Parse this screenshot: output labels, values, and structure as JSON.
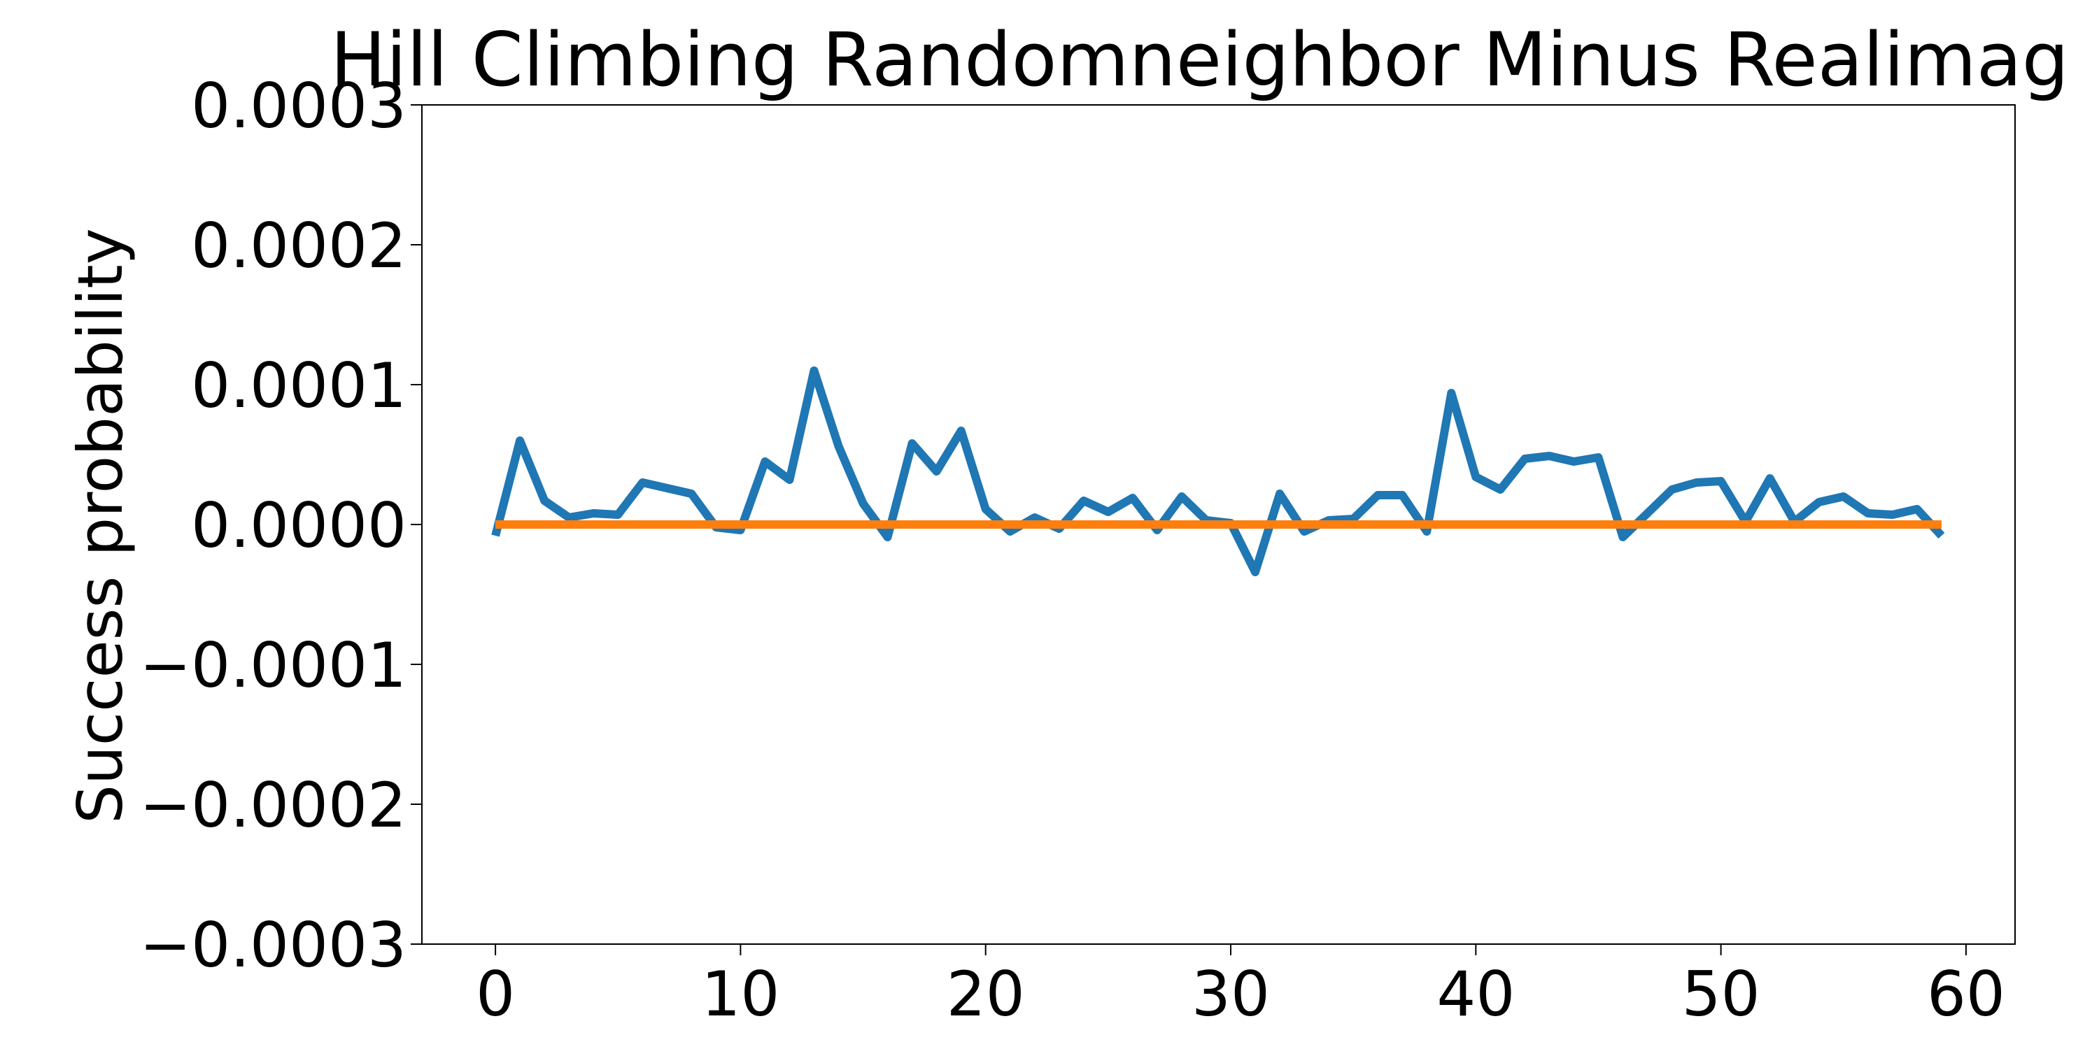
{
  "chart_data": {
    "type": "line",
    "title": "Hill Climbing Randomneighbor Minus Realimag",
    "xlabel": "",
    "ylabel": "Success probability",
    "xlim": [
      -3,
      62
    ],
    "ylim": [
      -0.0003,
      0.0003
    ],
    "xticks": [
      0,
      10,
      20,
      30,
      40,
      50,
      60
    ],
    "xtick_labels": [
      "0",
      "10",
      "20",
      "30",
      "40",
      "50",
      "60"
    ],
    "yticks": [
      0.0003,
      0.0002,
      0.0001,
      0.0,
      -0.0001,
      -0.0002,
      -0.0003
    ],
    "ytick_labels": [
      "0.0003",
      "0.0002",
      "0.0001",
      "0.0000",
      "−0.0001",
      "−0.0002",
      "−0.0003"
    ],
    "grid": false,
    "series": [
      {
        "color": "#1f77b4",
        "x": [
          0,
          1,
          2,
          3,
          4,
          5,
          6,
          7,
          8,
          9,
          10,
          11,
          12,
          13,
          14,
          15,
          16,
          17,
          18,
          19,
          20,
          21,
          22,
          23,
          24,
          25,
          26,
          27,
          28,
          29,
          30,
          31,
          32,
          33,
          34,
          35,
          36,
          37,
          38,
          39,
          40,
          41,
          42,
          43,
          44,
          45,
          46,
          47,
          48,
          49,
          50,
          51,
          52,
          53,
          54,
          55,
          56,
          57,
          58,
          59
        ],
        "values": [
          -8e-06,
          6e-05,
          1.7e-05,
          5e-06,
          8e-06,
          7e-06,
          3e-05,
          2.6e-05,
          2.2e-05,
          -2e-06,
          -4e-06,
          4.5e-05,
          3.2e-05,
          0.00011,
          5.6e-05,
          1.5e-05,
          -9e-06,
          5.8e-05,
          3.8e-05,
          6.7e-05,
          1.1e-05,
          -5e-06,
          5e-06,
          -3e-06,
          1.7e-05,
          9e-06,
          1.9e-05,
          -4e-06,
          2e-05,
          3e-06,
          1e-06,
          -3.4e-05,
          2.2e-05,
          -5e-06,
          3e-06,
          4e-06,
          2.1e-05,
          2.1e-05,
          -5e-06,
          9.4e-05,
          3.4e-05,
          2.5e-05,
          4.7e-05,
          4.9e-05,
          4.5e-05,
          4.8e-05,
          -9e-06,
          8e-06,
          2.5e-05,
          3e-05,
          3.1e-05,
          2e-06,
          3.3e-05,
          2e-06,
          1.6e-05,
          2e-05,
          8e-06,
          7e-06,
          1.1e-05,
          -8e-06
        ]
      },
      {
        "color": "#ff7f0e",
        "x": [
          0,
          59
        ],
        "values": [
          0.0,
          0.0
        ]
      }
    ]
  }
}
